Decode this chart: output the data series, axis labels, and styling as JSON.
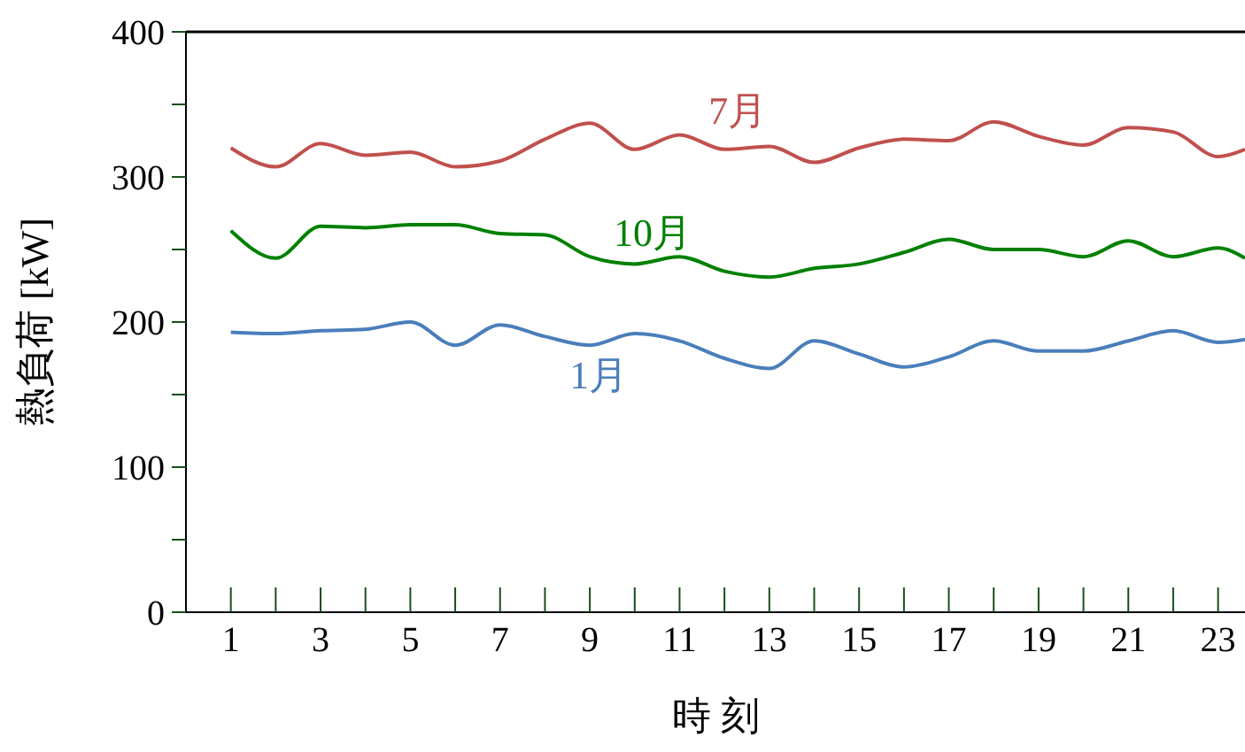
{
  "chart_data": {
    "type": "line",
    "xlabel": "時 刻",
    "ylabel": "熱負荷 [kW]",
    "xlim": [
      0,
      23.6
    ],
    "xticks": [
      {
        "value": 0,
        "label": null
      },
      1,
      {
        "value": 2,
        "label": null
      },
      3,
      {
        "value": 4,
        "label": null
      },
      5,
      {
        "value": 6,
        "label": null
      },
      7,
      {
        "value": 8,
        "label": null
      },
      9,
      {
        "value": 10,
        "label": null
      },
      11,
      {
        "value": 12,
        "label": null
      },
      13,
      {
        "value": 14,
        "label": null
      },
      15,
      {
        "value": 16,
        "label": null
      },
      17,
      {
        "value": 18,
        "label": null
      },
      19,
      {
        "value": 20,
        "label": null
      },
      21,
      {
        "value": 22,
        "label": null
      },
      23
    ],
    "ylim": [
      0,
      400
    ],
    "yticks": [
      0,
      {
        "value": 50,
        "label": null
      },
      100,
      {
        "value": 150,
        "label": null
      },
      200,
      {
        "value": 250,
        "label": null
      },
      300,
      {
        "value": 350,
        "label": null
      },
      400
    ],
    "x": [
      1,
      2,
      3,
      4,
      5,
      6,
      7,
      8,
      9,
      10,
      11,
      12,
      13,
      14,
      15,
      16,
      17,
      18,
      19,
      20,
      21,
      22,
      23,
      23.6
    ],
    "series": [
      {
        "name": "7月",
        "color": "#c0504d",
        "values": [
          320,
          307,
          323,
          315,
          317,
          307,
          311,
          326,
          337,
          319,
          329,
          319,
          321,
          310,
          320,
          326,
          325,
          338,
          328,
          322,
          334,
          331,
          314,
          319
        ]
      },
      {
        "name": "10月",
        "color": "#008000",
        "values": [
          263,
          244,
          266,
          265,
          267,
          267,
          261,
          260,
          245,
          240,
          245,
          235,
          231,
          237,
          240,
          248,
          257,
          250,
          250,
          245,
          256,
          245,
          251,
          244
        ]
      },
      {
        "name": "1月",
        "color": "#4a7ebb",
        "values": [
          193,
          192,
          194,
          195,
          200,
          184,
          198,
          190,
          184,
          192,
          187,
          175,
          168,
          187,
          178,
          169,
          176,
          187,
          180,
          180,
          187,
          194,
          186,
          188
        ]
      }
    ],
    "grid": false,
    "legend": false,
    "marker": "none",
    "line_style": "solid"
  }
}
